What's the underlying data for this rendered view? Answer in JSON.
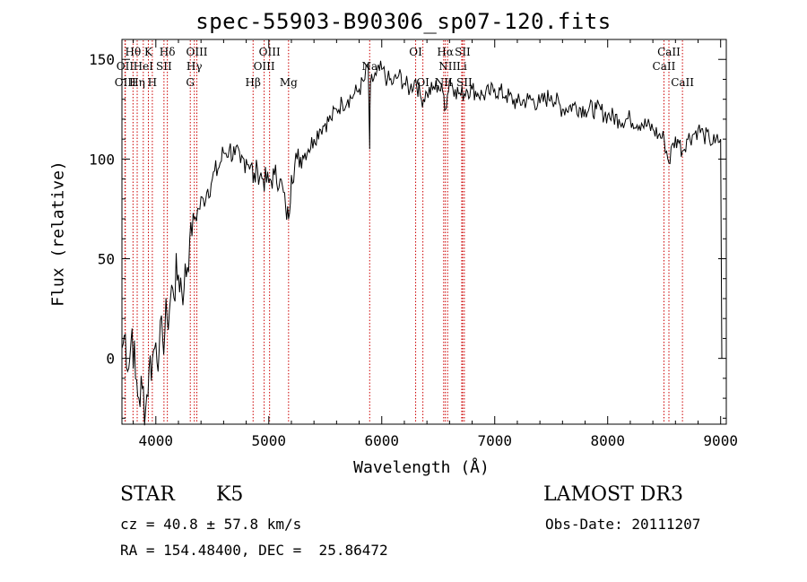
{
  "chart_data": {
    "type": "line",
    "title": "spec-55903-B90306_sp07-120.fits",
    "xlabel": "Wavelength (Å)",
    "ylabel": "Flux (relative)",
    "xlim": [
      3700,
      9050
    ],
    "ylim": [
      -33,
      160
    ],
    "xticks": [
      4000,
      5000,
      6000,
      7000,
      8000,
      9000
    ],
    "yticks": [
      0,
      50,
      100,
      150
    ],
    "series": [
      {
        "name": "spectrum",
        "x": [
          3700,
          3730,
          3760,
          3790,
          3820,
          3850,
          3880,
          3910,
          3940,
          3970,
          4000,
          4030,
          4060,
          4100,
          4150,
          4200,
          4250,
          4300,
          4340,
          4380,
          4420,
          4460,
          4500,
          4550,
          4600,
          4650,
          4700,
          4750,
          4800,
          4850,
          4861,
          4900,
          4950,
          5000,
          5050,
          5100,
          5150,
          5175,
          5200,
          5250,
          5300,
          5350,
          5400,
          5450,
          5500,
          5550,
          5600,
          5650,
          5700,
          5750,
          5800,
          5850,
          5880,
          5893,
          5900,
          5950,
          6000,
          6050,
          6100,
          6150,
          6200,
          6250,
          6300,
          6350,
          6400,
          6450,
          6500,
          6550,
          6563,
          6600,
          6650,
          6700,
          6750,
          6800,
          6850,
          6900,
          6950,
          7000,
          7100,
          7200,
          7300,
          7400,
          7500,
          7600,
          7700,
          7800,
          7900,
          8000,
          8100,
          8200,
          8300,
          8400,
          8450,
          8500,
          8542,
          8580,
          8620,
          8662,
          8700,
          8750,
          8800,
          8850,
          8900,
          8950,
          9000,
          9010
        ],
        "y": [
          5,
          12,
          -5,
          15,
          -10,
          -20,
          -15,
          -25,
          -5,
          0,
          8,
          5,
          10,
          20,
          35,
          42,
          35,
          60,
          70,
          75,
          80,
          85,
          90,
          95,
          103,
          105,
          102,
          98,
          100,
          98,
          88,
          95,
          90,
          88,
          92,
          90,
          75,
          70,
          92,
          100,
          102,
          105,
          110,
          115,
          118,
          120,
          125,
          128,
          130,
          132,
          135,
          140,
          148,
          105,
          138,
          142,
          145,
          140,
          138,
          142,
          138,
          135,
          140,
          130,
          133,
          135,
          137,
          132,
          125,
          140,
          135,
          132,
          135,
          135,
          133,
          132,
          133,
          135,
          132,
          128,
          130,
          128,
          132,
          125,
          127,
          125,
          125,
          122,
          120,
          120,
          118,
          115,
          112,
          110,
          98,
          108,
          110,
          104,
          110,
          112,
          115,
          112,
          110,
          108,
          110,
          0
        ]
      }
    ],
    "line_markers": [
      {
        "label": "Hθ",
        "wavelength": 3798,
        "row": 1
      },
      {
        "label": "OII",
        "wavelength": 3727,
        "row": 2
      },
      {
        "label": "OIII",
        "wavelength": 3730,
        "row": 3
      },
      {
        "label": "Hη",
        "wavelength": 3835,
        "row": 3
      },
      {
        "label": "HeI",
        "wavelength": 3889,
        "row": 2
      },
      {
        "label": "K",
        "wavelength": 3934,
        "row": 1
      },
      {
        "label": "H",
        "wavelength": 3969,
        "row": 3
      },
      {
        "label": "Hδ",
        "wavelength": 4102,
        "row": 1
      },
      {
        "label": "SII",
        "wavelength": 4072,
        "row": 2
      },
      {
        "label": "OIII",
        "wavelength": 4363,
        "row": 1
      },
      {
        "label": "Hγ",
        "wavelength": 4341,
        "row": 2
      },
      {
        "label": "G",
        "wavelength": 4305,
        "row": 3
      },
      {
        "label": "Hβ",
        "wavelength": 4861,
        "row": 3
      },
      {
        "label": "OIII",
        "wavelength": 4959,
        "row": 2
      },
      {
        "label": "OIII",
        "wavelength": 5007,
        "row": 1
      },
      {
        "label": "Mg",
        "wavelength": 5175,
        "row": 3
      },
      {
        "label": "Na",
        "wavelength": 5893,
        "row": 2
      },
      {
        "label": "OI",
        "wavelength": 6300,
        "row": 1
      },
      {
        "label": "OI",
        "wavelength": 6364,
        "row": 3
      },
      {
        "label": "NII",
        "wavelength": 6548,
        "row": 3
      },
      {
        "label": "Hα",
        "wavelength": 6563,
        "row": 1
      },
      {
        "label": "NII",
        "wavelength": 6583,
        "row": 2
      },
      {
        "label": "SII",
        "wavelength": 6716,
        "row": 1
      },
      {
        "label": "Li",
        "wavelength": 6708,
        "row": 2
      },
      {
        "label": "SII",
        "wavelength": 6731,
        "row": 3
      },
      {
        "label": "CaII",
        "wavelength": 8498,
        "row": 2
      },
      {
        "label": "CaII",
        "wavelength": 8542,
        "row": 1
      },
      {
        "label": "CaII",
        "wavelength": 8662,
        "row": 3
      }
    ],
    "line_marker_color": "#cc0000"
  },
  "info": {
    "object_class": "STAR",
    "subclass": "K5",
    "survey": "LAMOST DR3",
    "redshift": "cz = 40.8 ± 57.8 km/s",
    "obs_date": "Obs-Date: 20111207",
    "coords": "RA = 154.48400, DEC =  25.86472"
  }
}
